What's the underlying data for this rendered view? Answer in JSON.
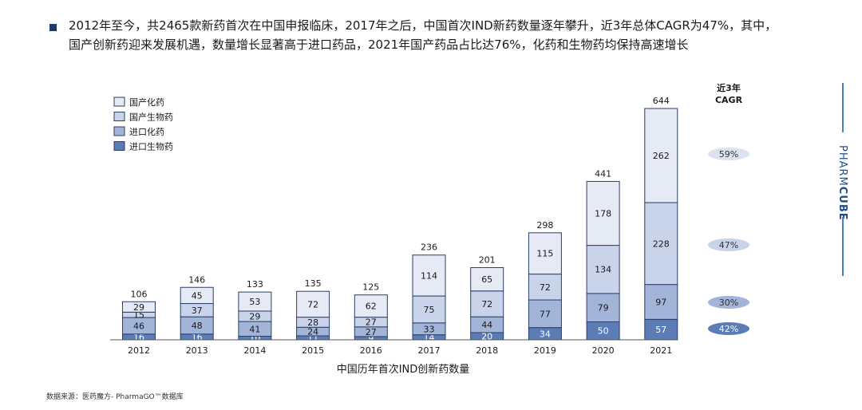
{
  "headline": {
    "line1": "2012年至今，共2465款新药首次在中国申报临床，2017年之后，中国首次IND新药数量逐年攀升，近3年总体CAGR为47%，其中，",
    "line2": "国产创新药迎来发展机遇，数量增长显著高于进口药品，2021年国产药品占比达76%，化药和生物药均保持高速增长"
  },
  "brand": {
    "part1": "PHARM",
    "part2": "CUBE"
  },
  "source": "数据来源：医药魔方- PharmaGO™数据库",
  "chart_data": {
    "type": "bar",
    "stacked": true,
    "xlabel": "中国历年首次IND创新药数量",
    "categories": [
      "2012",
      "2013",
      "2014",
      "2015",
      "2016",
      "2017",
      "2018",
      "2019",
      "2020",
      "2021"
    ],
    "totals": [
      106,
      146,
      133,
      135,
      125,
      236,
      201,
      298,
      441,
      644
    ],
    "series": [
      {
        "name": "进口生物药",
        "color": "#5b7cb5",
        "values": [
          16,
          16,
          10,
          11,
          9,
          14,
          20,
          34,
          50,
          57
        ]
      },
      {
        "name": "进口化药",
        "color": "#a3b4d9",
        "values": [
          46,
          48,
          41,
          24,
          27,
          33,
          44,
          77,
          79,
          97
        ]
      },
      {
        "name": "国产生物药",
        "color": "#c9d3ea",
        "values": [
          15,
          37,
          29,
          28,
          27,
          75,
          72,
          72,
          134,
          228
        ]
      },
      {
        "name": "国产化药",
        "color": "#e6eaf4",
        "values": [
          29,
          45,
          53,
          72,
          62,
          114,
          65,
          115,
          178,
          262
        ]
      }
    ],
    "legend_order": [
      "国产化药",
      "国产生物药",
      "进口化药",
      "进口生物药"
    ],
    "legend_position": "top-left",
    "cagr": {
      "title_line1": "近3年",
      "title_line2": "CAGR",
      "values": [
        {
          "series": "国产化药",
          "value": "59%",
          "fill": "#dce2f0",
          "text": "#333333"
        },
        {
          "series": "国产生物药",
          "value": "47%",
          "fill": "#c9d3ea",
          "text": "#333333"
        },
        {
          "series": "进口化药",
          "value": "30%",
          "fill": "#a3b4d9",
          "text": "#333333"
        },
        {
          "series": "进口生物药",
          "value": "42%",
          "fill": "#5b7cb5",
          "text": "#ffffff"
        }
      ]
    },
    "ylim": [
      0,
      660
    ],
    "grid": false
  }
}
